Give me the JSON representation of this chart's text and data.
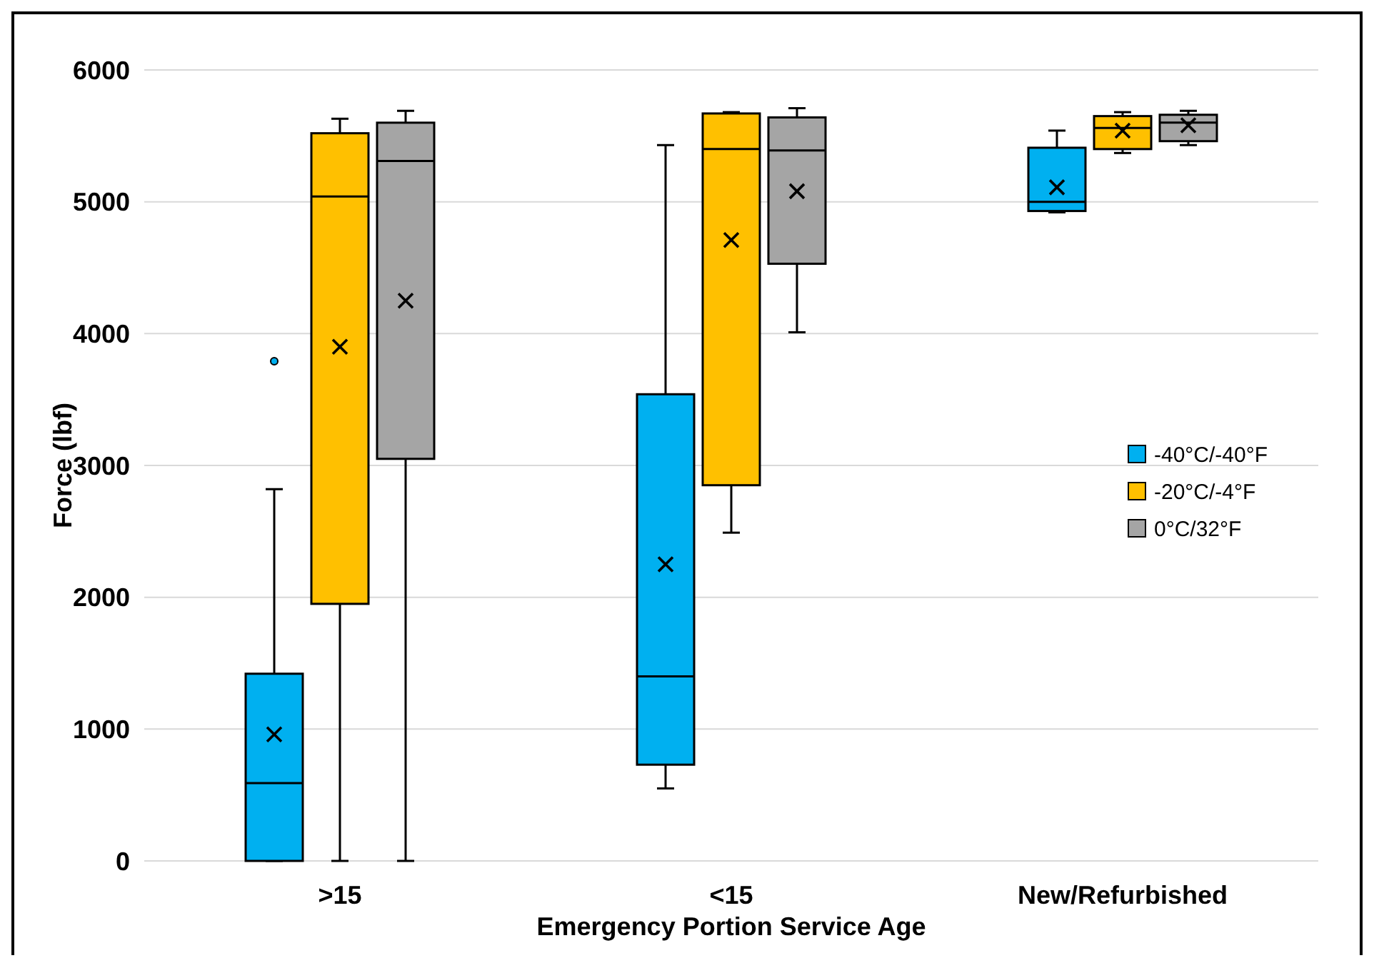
{
  "chart_data": {
    "type": "box",
    "xlabel": "Emergency Portion Service Age",
    "ylabel": "Force (lbf)",
    "categories": [
      ">15",
      "<15",
      "New/Refurbished"
    ],
    "ylim": [
      0,
      6000
    ],
    "yticks": [
      0,
      1000,
      2000,
      3000,
      4000,
      5000,
      6000
    ],
    "grid": "y",
    "legend": "right",
    "marker": "cross",
    "series": [
      {
        "name": "-40°C/-40°F",
        "color": "#00b0f0",
        "boxes": [
          {
            "low": 0,
            "q1": 0,
            "median": 590,
            "q3": 1420,
            "high": 2820,
            "mean": 960,
            "outliers": [
              3790
            ]
          },
          {
            "low": 550,
            "q1": 730,
            "median": 1400,
            "q3": 3540,
            "high": 5430,
            "mean": 2250
          },
          {
            "low": 4920,
            "q1": 4930,
            "median": 5000,
            "q3": 5410,
            "high": 5540,
            "mean": 5110
          }
        ]
      },
      {
        "name": "-20°C/-4°F",
        "color": "#ffc000",
        "boxes": [
          {
            "low": 0,
            "q1": 1950,
            "median": 5040,
            "q3": 5520,
            "high": 5630,
            "mean": 3900
          },
          {
            "low": 2490,
            "q1": 2850,
            "median": 5400,
            "q3": 5670,
            "high": 5680,
            "mean": 4710
          },
          {
            "low": 5370,
            "q1": 5400,
            "median": 5560,
            "q3": 5650,
            "high": 5680,
            "mean": 5540
          }
        ]
      },
      {
        "name": "0°C/32°F",
        "color": "#a5a5a5",
        "boxes": [
          {
            "low": 0,
            "q1": 3050,
            "median": 5310,
            "q3": 5600,
            "high": 5690,
            "mean": 4250
          },
          {
            "low": 4010,
            "q1": 4530,
            "median": 5390,
            "q3": 5640,
            "high": 5710,
            "mean": 5080
          },
          {
            "low": 5430,
            "q1": 5460,
            "median": 5600,
            "q3": 5660,
            "high": 5690,
            "mean": 5580
          }
        ]
      }
    ]
  }
}
